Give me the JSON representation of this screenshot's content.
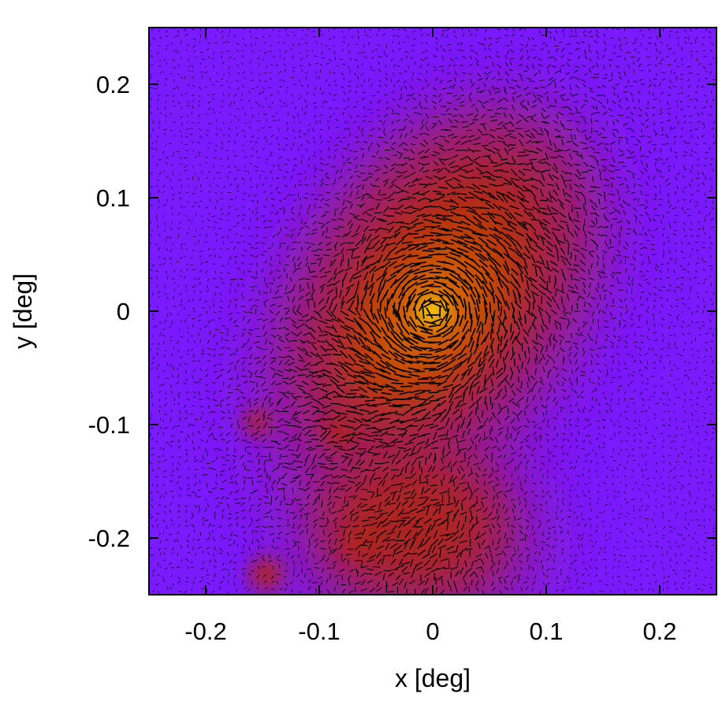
{
  "chart_data": {
    "type": "heatmap",
    "title": "",
    "xlabel": "x [deg]",
    "ylabel": "y [deg]",
    "xlim": [
      -0.25,
      0.25
    ],
    "ylim": [
      -0.25,
      0.25
    ],
    "xticks": [
      -0.2,
      -0.1,
      0,
      0.1,
      0.2
    ],
    "yticks": [
      -0.2,
      -0.1,
      0,
      0.1,
      0.2
    ],
    "xtick_labels": [
      "-0.2",
      "-0.1",
      "0",
      "0.1",
      "0.2"
    ],
    "ytick_labels": [
      "-0.2",
      "-0.1",
      "0",
      "0.1",
      "0.2"
    ],
    "grid": false,
    "legend": "none",
    "colormap": [
      "#7a1aff",
      "#8a1ad8",
      "#a01c6a",
      "#b0260a",
      "#c44a00",
      "#e07800",
      "#ffe800"
    ],
    "overlay": "polarization vectors (short black line segments)",
    "features": [
      {
        "name": "central peak",
        "x": 0.0,
        "y": 0.0,
        "intensity": 1.0
      },
      {
        "name": "lower-left knot",
        "x": -0.147,
        "y": -0.232,
        "intensity": 0.55
      },
      {
        "name": "knot",
        "x": -0.082,
        "y": -0.107,
        "intensity": 0.4
      },
      {
        "name": "knot",
        "x": -0.155,
        "y": -0.098,
        "intensity": 0.3
      },
      {
        "name": "knot",
        "x": -0.065,
        "y": -0.205,
        "intensity": 0.35
      }
    ]
  },
  "colors": {
    "frame": "#000000",
    "background_low": "#7a1aff",
    "peak": "#ffe800"
  }
}
